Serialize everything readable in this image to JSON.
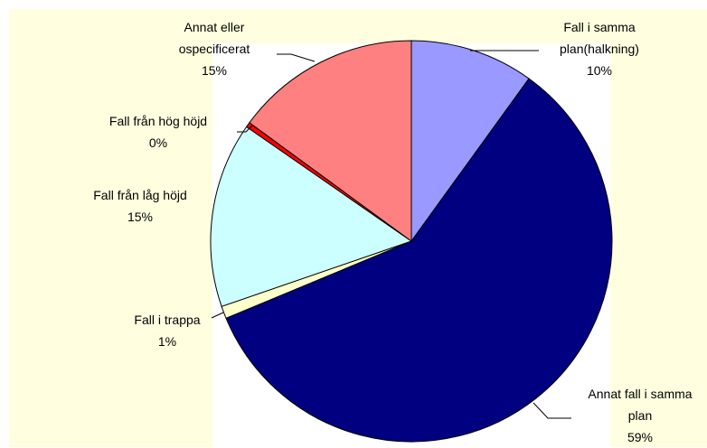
{
  "chart_data": {
    "type": "pie",
    "categories": [
      "Fall i samma plan(halkning)",
      "Annat fall i samma plan",
      "Fall i trappa",
      "Fall från låg höjd",
      "Fall från hög höjd",
      "Annat eller ospecificerat"
    ],
    "values": [
      10,
      59,
      1,
      15,
      0.4,
      15
    ],
    "value_labels": [
      "10%",
      "59%",
      "1%",
      "15%",
      "0%",
      "15%"
    ],
    "colors": [
      "#9999ff",
      "#000080",
      "#ffffcc",
      "#ccffff",
      "#ff0000",
      "#ff8080"
    ]
  }
}
